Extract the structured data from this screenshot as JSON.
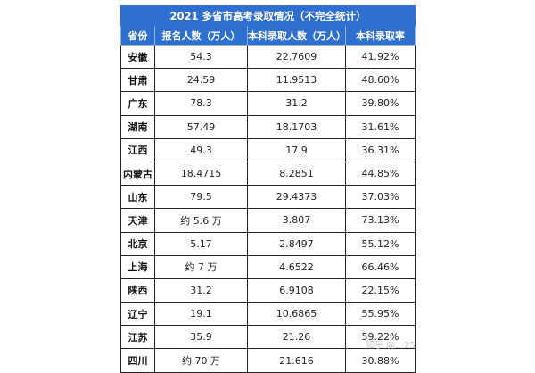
{
  "table": {
    "title": "2021 多省市高考录取情况（不完全统计）",
    "headers": [
      "省份",
      "报名人数（万人）",
      "本科录取人数（万人）",
      "本科录取率"
    ],
    "rows": [
      {
        "province": "安徽",
        "applicants": "54.3",
        "admitted": "22.7609",
        "rate": "41.92%"
      },
      {
        "province": "甘肃",
        "applicants": "24.59",
        "admitted": "11.9513",
        "rate": "48.60%"
      },
      {
        "province": "广东",
        "applicants": "78.3",
        "admitted": "31.2",
        "rate": "39.80%"
      },
      {
        "province": "湖南",
        "applicants": "57.49",
        "admitted": "18.1703",
        "rate": "31.61%"
      },
      {
        "province": "江西",
        "applicants": "49.3",
        "admitted": "17.9",
        "rate": "36.31%"
      },
      {
        "province": "内蒙古",
        "applicants": "18.4715",
        "admitted": "8.2851",
        "rate": "44.85%"
      },
      {
        "province": "山东",
        "applicants": "79.5",
        "admitted": "29.4373",
        "rate": "37.03%"
      },
      {
        "province": "天津",
        "applicants": "约 5.6 万",
        "admitted": "3.807",
        "rate": "73.13%"
      },
      {
        "province": "北京",
        "applicants": "5.17",
        "admitted": "2.8497",
        "rate": "55.12%"
      },
      {
        "province": "上海",
        "applicants": "约 7 万",
        "admitted": "4.6522",
        "rate": "66.46%"
      },
      {
        "province": "陕西",
        "applicants": "31.2",
        "admitted": "6.9108",
        "rate": "22.15%"
      },
      {
        "province": "辽宁",
        "applicants": "19.1",
        "admitted": "10.6865",
        "rate": "55.95%"
      },
      {
        "province": "江苏",
        "applicants": "35.9",
        "admitted": "21.26",
        "rate": "59.22%"
      },
      {
        "province": "四川",
        "applicants": "约 70 万",
        "admitted": "21.616",
        "rate": "30.88%"
      }
    ]
  },
  "watermark": "知乎 @…25",
  "colors": {
    "header_bg": "#2f6fcf",
    "header_text": "#ffffff",
    "border": "#222222"
  }
}
